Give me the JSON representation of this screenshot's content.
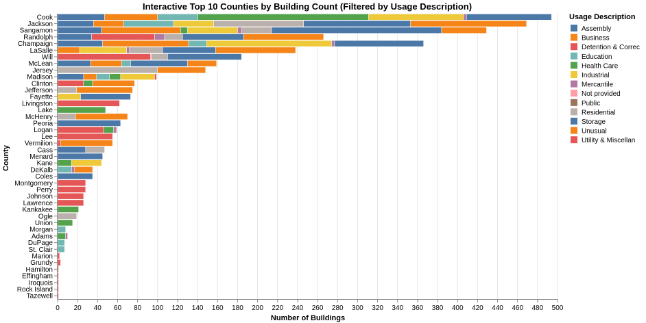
{
  "chart_data": {
    "type": "bar",
    "orientation": "horizontal",
    "stacked": true,
    "title": "Interactive Top 10 Counties by Building Count (Filtered by Usage Description)",
    "xlabel": "Number of Buildings",
    "ylabel": "County",
    "xlim": [
      0,
      500
    ],
    "x_ticks": [
      0,
      20,
      40,
      60,
      80,
      100,
      120,
      140,
      160,
      180,
      200,
      220,
      240,
      260,
      280,
      300,
      320,
      340,
      360,
      380,
      400,
      420,
      440,
      460,
      480,
      500
    ],
    "grid": true,
    "legend": {
      "title": "Usage Description",
      "placement": "right"
    },
    "categories": [
      "Cook",
      "Jackson",
      "Sangamon",
      "Randolph",
      "Champaign",
      "LaSalle",
      "Will",
      "McLean",
      "Jersey",
      "Madison",
      "Clinton",
      "Jefferson",
      "Fayette",
      "Livingston",
      "Lake",
      "McHenry",
      "Peoria",
      "Logan",
      "Lee",
      "Vermilion",
      "Cass",
      "Menard",
      "Kane",
      "DeKalb",
      "Coles",
      "Montgomery",
      "Perry",
      "Johnson",
      "Lawrence",
      "Kankakee",
      "Ogle",
      "Union",
      "Morgan",
      "Adams",
      "DuPage",
      "St. Clair",
      "Marion",
      "Grundy",
      "Hamilton",
      "Effingham",
      "Iroquois",
      "Rock Island",
      "Tazewell"
    ],
    "series": [
      {
        "name": "Assembly",
        "color": "#4c78a8",
        "values": [
          47,
          36,
          44,
          34,
          45,
          0,
          0,
          33,
          0,
          26,
          0,
          0,
          0,
          0,
          0,
          0,
          63,
          0,
          0,
          0,
          28,
          45,
          0,
          0,
          35,
          0,
          0,
          0,
          0,
          0,
          0,
          0,
          0,
          0,
          0,
          0,
          0,
          0,
          0,
          0,
          0,
          0,
          0
        ]
      },
      {
        "name": "Business",
        "color": "#f58518",
        "values": [
          53,
          30,
          79,
          0,
          86,
          22,
          0,
          31,
          0,
          13,
          0,
          0,
          0,
          0,
          0,
          0,
          0,
          0,
          0,
          0,
          0,
          0,
          0,
          0,
          0,
          0,
          0,
          0,
          0,
          0,
          0,
          0,
          0,
          0,
          0,
          0,
          0,
          0,
          0,
          0,
          0,
          0,
          0
        ]
      },
      {
        "name": "Detention & Correc",
        "color": "#e45756",
        "values": [
          0,
          0,
          0,
          63,
          0,
          0,
          93,
          0,
          0,
          0,
          26,
          0,
          0,
          62,
          0,
          0,
          0,
          46,
          55,
          3,
          0,
          0,
          0,
          0,
          0,
          28,
          28,
          26,
          26,
          0,
          0,
          0,
          0,
          0,
          0,
          0,
          2,
          3,
          1,
          1,
          1,
          1,
          1
        ]
      },
      {
        "name": "Education",
        "color": "#72b7b2",
        "values": [
          40,
          50,
          0,
          0,
          18,
          0,
          0,
          9,
          0,
          13,
          0,
          0,
          0,
          0,
          0,
          0,
          0,
          0,
          0,
          0,
          0,
          0,
          0,
          14,
          0,
          0,
          0,
          0,
          0,
          0,
          0,
          0,
          8,
          0,
          7,
          7,
          0,
          0,
          0,
          0,
          0,
          0,
          0
        ]
      },
      {
        "name": "Health Care",
        "color": "#54a24b",
        "values": [
          171,
          0,
          7,
          0,
          0,
          0,
          0,
          0,
          0,
          11,
          9,
          0,
          0,
          0,
          48,
          0,
          0,
          10,
          0,
          0,
          0,
          0,
          14,
          0,
          0,
          0,
          0,
          0,
          0,
          21,
          0,
          15,
          0,
          8,
          0,
          0,
          0,
          0,
          0,
          0,
          0,
          0,
          0
        ]
      },
      {
        "name": "Industrial",
        "color": "#eeca3b",
        "values": [
          95,
          40,
          50,
          0,
          125,
          47,
          0,
          0,
          0,
          34,
          0,
          0,
          23,
          0,
          0,
          0,
          0,
          0,
          0,
          0,
          0,
          0,
          30,
          0,
          0,
          0,
          0,
          0,
          0,
          0,
          0,
          0,
          0,
          0,
          0,
          0,
          0,
          0,
          0,
          0,
          0,
          0,
          0
        ]
      },
      {
        "name": "Mercantile",
        "color": "#b279a2",
        "values": [
          3,
          0,
          4,
          10,
          3,
          3,
          0,
          0,
          0,
          0,
          0,
          0,
          0,
          0,
          0,
          0,
          0,
          3,
          0,
          0,
          0,
          0,
          0,
          3,
          0,
          0,
          0,
          0,
          0,
          0,
          0,
          0,
          0,
          2,
          0,
          0,
          0,
          0,
          0,
          0,
          0,
          0,
          0
        ]
      },
      {
        "name": "Not provided",
        "color": "#ff9da6",
        "values": [
          0,
          0,
          0,
          0,
          0,
          0,
          1,
          0,
          0,
          0,
          0,
          0,
          0,
          0,
          0,
          0,
          0,
          0,
          0,
          0,
          0,
          0,
          0,
          0,
          0,
          0,
          0,
          0,
          0,
          0,
          0,
          0,
          0,
          0,
          0,
          0,
          0,
          0,
          0,
          0,
          0,
          0,
          0
        ]
      },
      {
        "name": "Public",
        "color": "#9d755d",
        "values": [
          0,
          0,
          0,
          0,
          0,
          0,
          0,
          0,
          0,
          0,
          0,
          0,
          0,
          0,
          0,
          0,
          0,
          0,
          0,
          0,
          0,
          0,
          0,
          0,
          0,
          0,
          0,
          0,
          0,
          0,
          0,
          0,
          0,
          0,
          0,
          0,
          0,
          0,
          0,
          0,
          0,
          0,
          0
        ]
      },
      {
        "name": "Residential",
        "color": "#bab0ac",
        "values": [
          0,
          90,
          30,
          18,
          0,
          33,
          16,
          0,
          100,
          0,
          0,
          19,
          0,
          0,
          0,
          18,
          0,
          0,
          0,
          0,
          19,
          0,
          0,
          0,
          0,
          0,
          0,
          0,
          0,
          0,
          19,
          0,
          0,
          0,
          0,
          0,
          0,
          0,
          0,
          0,
          0,
          0,
          0
        ]
      },
      {
        "name": "Storage",
        "color": "#4c78a8",
        "values": [
          85,
          107,
          170,
          61,
          89,
          53,
          74,
          57,
          0,
          0,
          0,
          0,
          50,
          0,
          0,
          0,
          0,
          0,
          0,
          0,
          0,
          0,
          0,
          0,
          0,
          0,
          0,
          0,
          0,
          0,
          0,
          0,
          0,
          0,
          0,
          0,
          0,
          0,
          0,
          0,
          0,
          0,
          0
        ]
      },
      {
        "name": "Unusual",
        "color": "#f58518",
        "values": [
          0,
          116,
          45,
          80,
          0,
          80,
          0,
          29,
          48,
          0,
          42,
          56,
          0,
          0,
          0,
          52,
          0,
          0,
          0,
          52,
          0,
          0,
          0,
          18,
          0,
          0,
          0,
          0,
          0,
          0,
          0,
          0,
          0,
          0,
          0,
          0,
          0,
          0,
          0,
          0,
          0,
          0,
          0
        ]
      },
      {
        "name": "Utility & Miscellan",
        "color": "#e45756",
        "values": [
          0,
          0,
          0,
          0,
          0,
          0,
          0,
          0,
          0,
          2,
          0,
          0,
          0,
          0,
          0,
          0,
          0,
          0,
          0,
          0,
          0,
          0,
          0,
          0,
          0,
          0,
          0,
          0,
          0,
          0,
          0,
          0,
          0,
          0,
          0,
          0,
          0,
          0,
          0,
          0,
          0,
          0,
          0
        ]
      }
    ]
  }
}
